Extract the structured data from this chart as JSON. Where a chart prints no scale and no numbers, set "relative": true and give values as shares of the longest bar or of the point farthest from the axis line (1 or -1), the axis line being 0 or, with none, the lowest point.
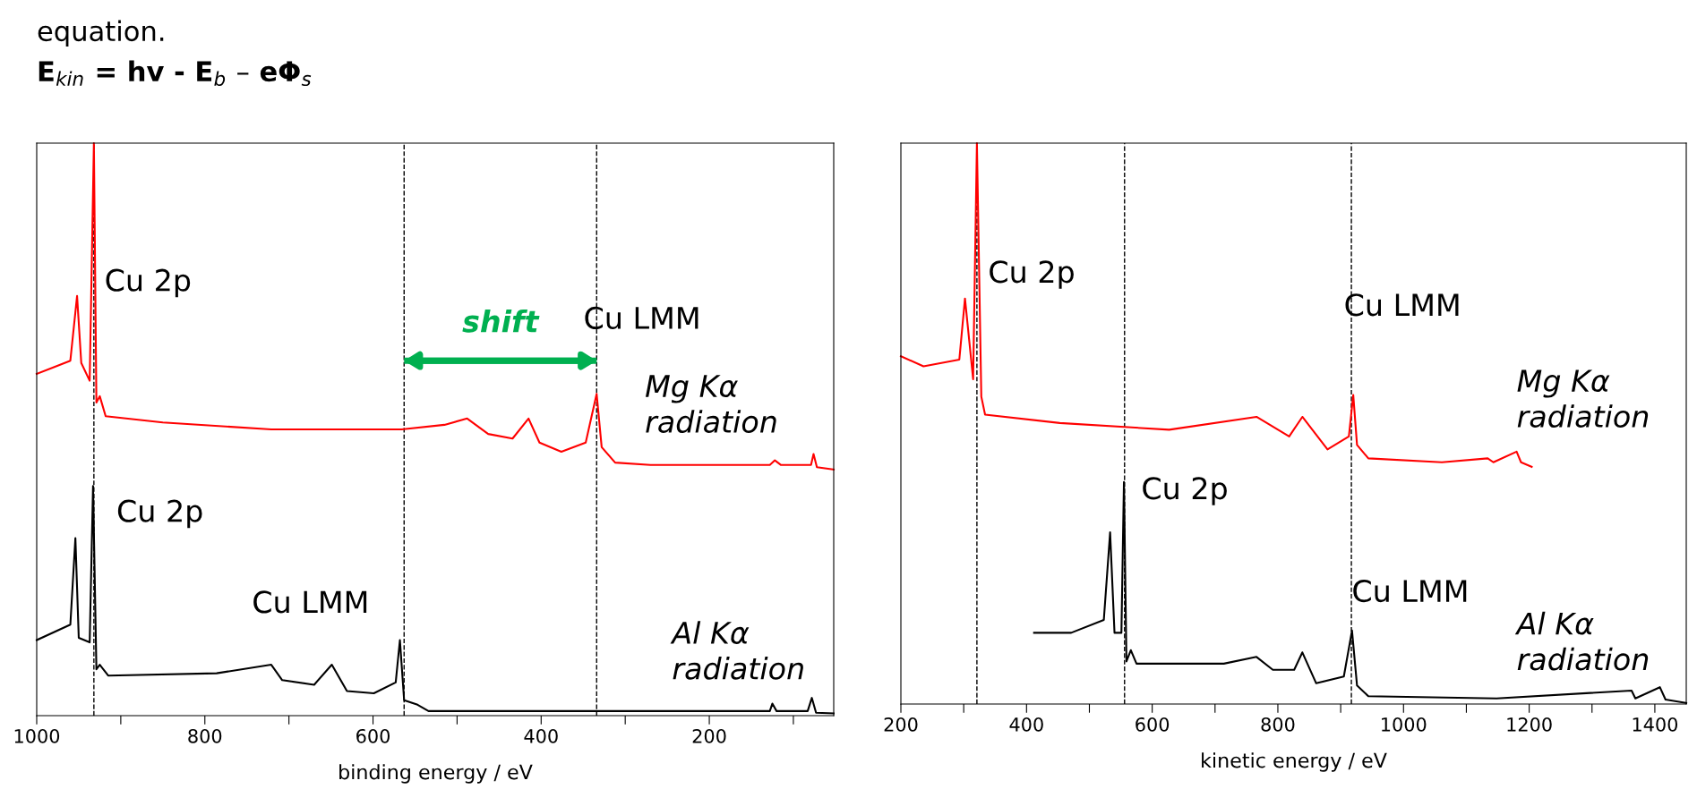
{
  "chart_data": [
    {
      "type": "line",
      "relative": true,
      "title": "E$_{kin}$ = hv - E$_{b}$ – eΦ$_{s}$",
      "xlabel": "binding energy / eV",
      "xlim": [
        1000,
        52
      ],
      "tick_labels": "x",
      "xticks": [
        1000,
        {
          "value": 900,
          "label": null
        },
        800,
        {
          "value": 700,
          "label": null
        },
        600,
        {
          "value": 500,
          "label": null
        },
        400,
        {
          "value": 300,
          "label": null
        },
        200,
        {
          "value": 100,
          "label": null
        }
      ],
      "series": [
        {
          "color": "#ff0000",
          "x": [
            1000,
            979,
            960,
            952,
            947,
            937,
            932,
            929,
            925,
            918,
            850,
            721,
            566,
            515,
            488,
            463,
            434,
            415,
            402,
            376,
            347,
            334,
            328,
            312,
            270,
            128,
            122,
            115,
            79,
            76,
            72,
            52
          ],
          "values": [
            0.597,
            0.609,
            0.62,
            0.733,
            0.616,
            0.585,
            1.0,
            0.547,
            0.558,
            0.523,
            0.512,
            0.5,
            0.5,
            0.508,
            0.519,
            0.492,
            0.484,
            0.519,
            0.477,
            0.461,
            0.477,
            0.562,
            0.469,
            0.442,
            0.438,
            0.438,
            0.446,
            0.438,
            0.438,
            0.457,
            0.434,
            0.43
          ]
        },
        {
          "color": "#000000",
          "x": [
            1000,
            960,
            954,
            950,
            937,
            933,
            929,
            925,
            915,
            786,
            721,
            708,
            670,
            649,
            631,
            599,
            573,
            568,
            563,
            547,
            534,
            399,
            128,
            125,
            120,
            83,
            78,
            73,
            52
          ],
          "values": [
            0.132,
            0.159,
            0.31,
            0.136,
            0.128,
            0.401,
            0.081,
            0.089,
            0.07,
            0.074,
            0.089,
            0.062,
            0.054,
            0.089,
            0.043,
            0.039,
            0.058,
            0.132,
            0.027,
            0.019,
            0.008,
            0.008,
            0.008,
            0.021,
            0.008,
            0.008,
            0.031,
            0.005,
            0.004
          ]
        },
        {
          "name": "shift",
          "color": "#00b050",
          "x": [
            563,
            334
          ],
          "values": [
            0.62,
            0.62
          ]
        }
      ],
      "ref_lines": [
        {
          "axis": "x",
          "value": 932,
          "color": "#000000",
          "line_style": "dashed"
        },
        {
          "axis": "x",
          "value": 563,
          "color": "#000000",
          "line_style": "dashed"
        },
        {
          "axis": "x",
          "value": 334,
          "color": "#000000",
          "line_style": "dashed"
        }
      ],
      "annotations": [
        "equation.",
        "Cu 2p",
        "Cu LMM",
        "Cu 2p",
        "Cu LMM",
        "Mg Kα\nradiation",
        "Al Kα\nradiation"
      ]
    },
    {
      "type": "line",
      "relative": true,
      "xlabel": "kinetic energy / eV",
      "xlim": [
        200,
        1450
      ],
      "tick_labels": "x",
      "xticks": [
        200,
        {
          "value": 300,
          "label": null
        },
        400,
        {
          "value": 500,
          "label": null
        },
        600,
        {
          "value": 700,
          "label": null
        },
        800,
        {
          "value": 900,
          "label": null
        },
        1000,
        {
          "value": 1100,
          "label": null
        },
        1200,
        {
          "value": 1300,
          "label": null
        },
        1400
      ],
      "series": [
        {
          "color": "#ff0000",
          "x": [
            200,
            236,
            293,
            302,
            315,
            321,
            328,
            334,
            453,
            627,
            766,
            818,
            839,
            879,
            913,
            920,
            926,
            944,
            1061,
            1134,
            1143,
            1180,
            1187,
            1204
          ],
          "values": [
            0.62,
            0.602,
            0.614,
            0.723,
            0.579,
            1.0,
            0.548,
            0.516,
            0.501,
            0.489,
            0.512,
            0.477,
            0.512,
            0.454,
            0.477,
            0.551,
            0.462,
            0.438,
            0.431,
            0.438,
            0.431,
            0.45,
            0.431,
            0.423
          ]
        },
        {
          "color": "#000000",
          "x": [
            412,
            471,
            523,
            533,
            540,
            551,
            555,
            559,
            566,
            575,
            714,
            766,
            792,
            826,
            839,
            861,
            905,
            918,
            926,
            944,
            1148,
            1363,
            1369,
            1408,
            1417,
            1450
          ],
          "values": [
            0.127,
            0.127,
            0.15,
            0.306,
            0.127,
            0.127,
            0.396,
            0.076,
            0.096,
            0.072,
            0.072,
            0.084,
            0.061,
            0.061,
            0.092,
            0.037,
            0.049,
            0.131,
            0.033,
            0.014,
            0.01,
            0.024,
            0.01,
            0.03,
            0.008,
            0.002
          ]
        }
      ],
      "ref_lines": [
        {
          "axis": "x",
          "value": 321,
          "color": "#000000",
          "line_style": "dashed"
        },
        {
          "axis": "x",
          "value": 556,
          "color": "#000000",
          "line_style": "dashed"
        },
        {
          "axis": "x",
          "value": 917,
          "color": "#000000",
          "line_style": "dashed"
        }
      ],
      "annotations": [
        "Cu 2p",
        "Cu LMM",
        "Cu 2p",
        "Cu LMM",
        "Mg Kα\nradiation",
        "Al Kα\nradiation"
      ]
    }
  ]
}
